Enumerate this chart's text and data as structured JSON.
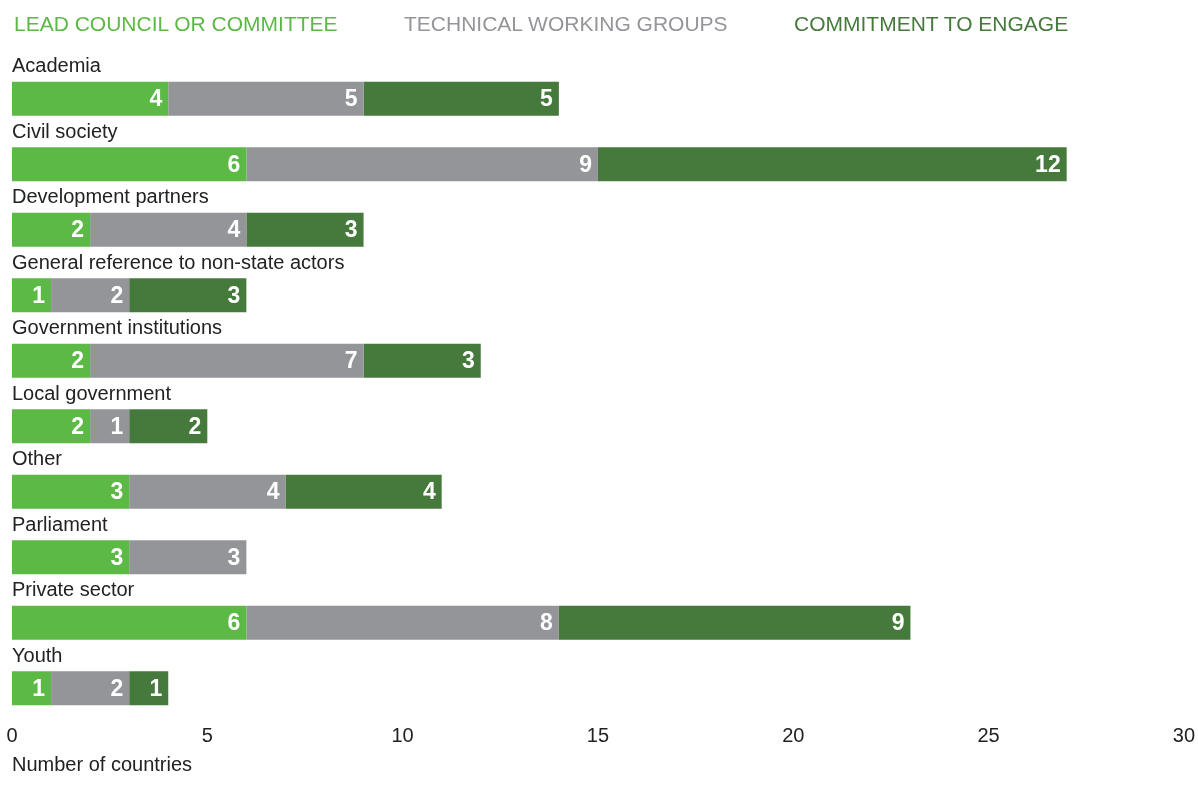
{
  "chart_data": {
    "type": "bar",
    "orientation": "horizontal",
    "stacked": true,
    "xlabel": "Number of countries",
    "categories": [
      "Academia",
      "Civil society",
      "Development partners",
      "General reference to non-state actors",
      "Government institutions",
      "Local government",
      "Other",
      "Parliament",
      "Private sector",
      "Youth"
    ],
    "series": [
      {
        "name": "LEAD COUNCIL OR COMMITTEE",
        "color": "#5cb946",
        "values": [
          4,
          6,
          2,
          1,
          2,
          2,
          3,
          3,
          6,
          1
        ]
      },
      {
        "name": "TECHNICAL WORKING GROUPS",
        "color": "#939598",
        "values": [
          5,
          9,
          4,
          2,
          7,
          1,
          4,
          3,
          8,
          2
        ]
      },
      {
        "name": "COMMITMENT TO ENGAGE",
        "color": "#467a3c",
        "values": [
          5,
          12,
          3,
          3,
          3,
          2,
          4,
          null,
          9,
          1
        ]
      }
    ],
    "xlim": [
      0,
      30
    ],
    "xticks": [
      0,
      5,
      10,
      15,
      20,
      25,
      30
    ],
    "grid": false,
    "legend": "top left",
    "data_labels": true
  }
}
